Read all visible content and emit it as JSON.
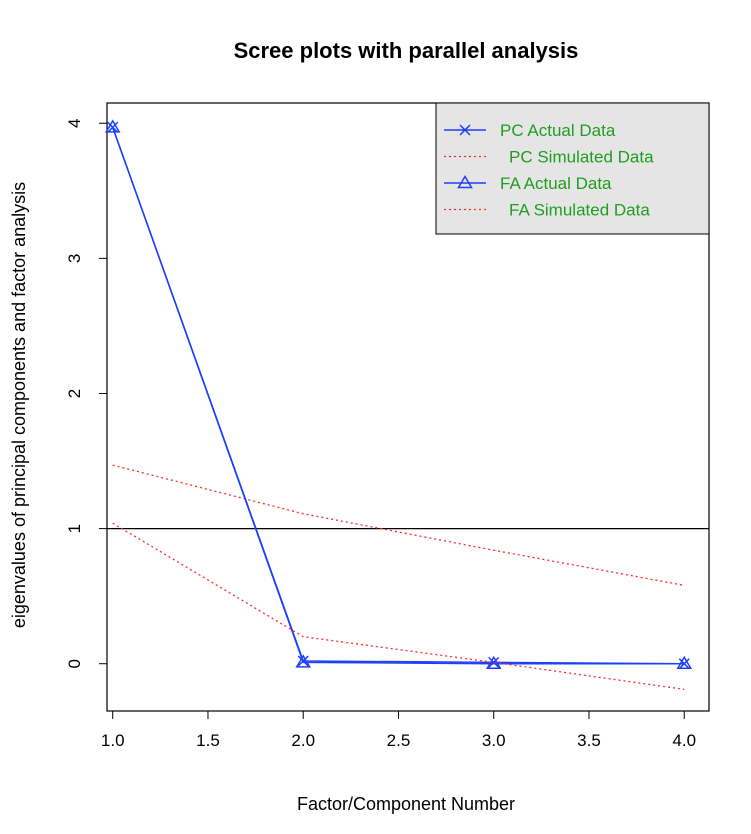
{
  "chart_data": {
    "type": "line",
    "title": "Scree plots with parallel analysis",
    "xlabel": "Factor/Component Number",
    "ylabel": "eigenvalues of principal components and factor analysis",
    "xlim": [
      0.97,
      4.13
    ],
    "ylim": [
      -0.35,
      4.15
    ],
    "x_ticks": [
      "1.0",
      "1.5",
      "2.0",
      "2.5",
      "3.0",
      "3.5",
      "4.0"
    ],
    "y_ticks": [
      "0",
      "1",
      "2",
      "3",
      "4"
    ],
    "reference_line": 1,
    "grid": false,
    "legend_position": "top-right",
    "series": [
      {
        "name": "PC  Actual Data",
        "marker": "x",
        "line": "solid",
        "color": "#1f3fff",
        "x": [
          1,
          2,
          3,
          4
        ],
        "y": [
          3.97,
          0.02,
          0.01,
          0.0
        ]
      },
      {
        "name": "PC  Simulated Data",
        "marker": "none",
        "line": "dotted",
        "color": "#ff2a2a",
        "x": [
          1,
          2,
          3,
          4
        ],
        "y": [
          1.47,
          1.11,
          0.84,
          0.58
        ]
      },
      {
        "name": "FA  Actual Data",
        "marker": "triangle",
        "line": "solid",
        "color": "#1f3fff",
        "x": [
          1,
          2,
          3,
          4
        ],
        "y": [
          3.97,
          0.01,
          0.0,
          0.0
        ]
      },
      {
        "name": "FA  Simulated Data",
        "marker": "none",
        "line": "dotted",
        "color": "#ff2a2a",
        "x": [
          1,
          2,
          3,
          4
        ],
        "y": [
          1.04,
          0.2,
          0.01,
          -0.19
        ]
      }
    ]
  }
}
